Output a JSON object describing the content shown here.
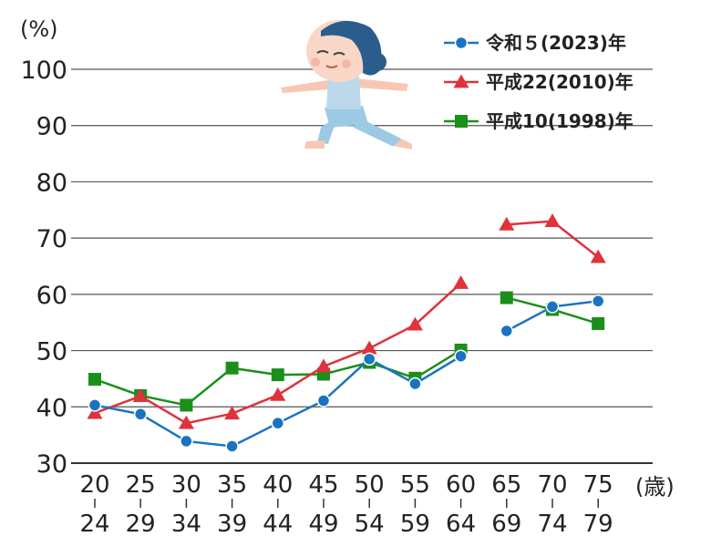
{
  "chart_data": {
    "type": "line",
    "y_unit": "(%)",
    "x_unit": "(歳)",
    "ylim": [
      30,
      100
    ],
    "y_ticks": [
      30,
      40,
      50,
      60,
      70,
      80,
      90,
      100
    ],
    "grid": true,
    "legend_position": "top-right",
    "categories": [
      {
        "top": "20",
        "bottom": "24"
      },
      {
        "top": "25",
        "bottom": "29"
      },
      {
        "top": "30",
        "bottom": "34"
      },
      {
        "top": "35",
        "bottom": "39"
      },
      {
        "top": "40",
        "bottom": "44"
      },
      {
        "top": "45",
        "bottom": "49"
      },
      {
        "top": "50",
        "bottom": "54"
      },
      {
        "top": "55",
        "bottom": "59"
      },
      {
        "top": "60",
        "bottom": "64"
      },
      {
        "top": "65",
        "bottom": "69"
      },
      {
        "top": "70",
        "bottom": "74"
      },
      {
        "top": "75",
        "bottom": "79"
      }
    ],
    "segment_break_after_index": 8,
    "series": [
      {
        "name": "令和５(2023)年",
        "color": "#1a73c0",
        "marker": "circle",
        "values": [
          40.3,
          38.7,
          33.9,
          33.0,
          37.1,
          41.1,
          48.5,
          44.1,
          49.0,
          53.5,
          57.8,
          58.8
        ]
      },
      {
        "name": "平成22(2010)年",
        "color": "#e0323c",
        "marker": "triangle",
        "values": [
          38.9,
          41.9,
          37.1,
          38.8,
          42.1,
          47.2,
          50.4,
          54.6,
          62.0,
          72.4,
          73.0,
          66.6
        ]
      },
      {
        "name": "平成10(1998)年",
        "color": "#1a8f1a",
        "marker": "square",
        "values": [
          44.9,
          42.0,
          40.3,
          46.9,
          45.7,
          45.8,
          47.9,
          45.1,
          50.1,
          59.4,
          57.3,
          54.8
        ]
      }
    ]
  },
  "illustration": {
    "icon": "person-yoga-warrior-pose-icon"
  }
}
